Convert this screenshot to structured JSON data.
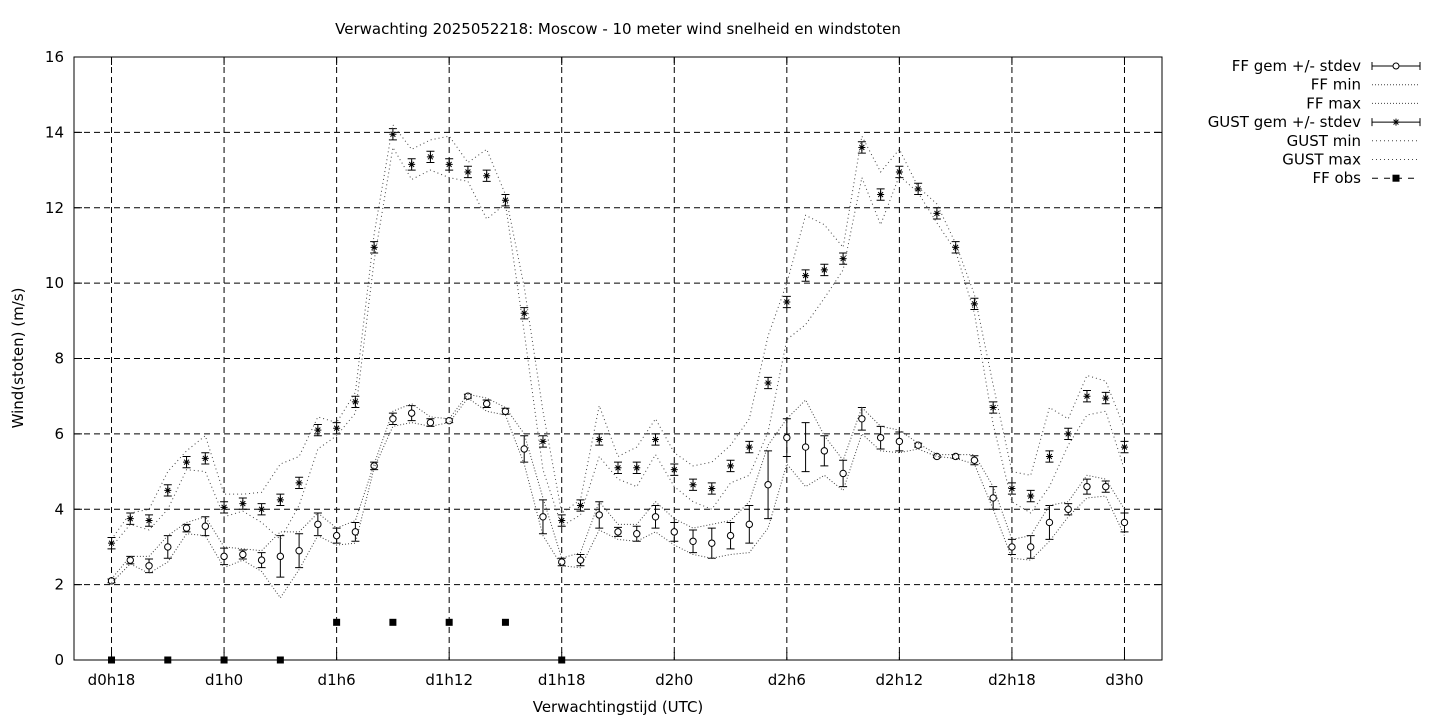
{
  "chart_data": {
    "type": "line",
    "title": "Verwachting 2025052218: Moscow - 10 meter wind snelheid en windstoten",
    "xlabel": "Verwachtingstijd (UTC)",
    "ylabel": "Wind(stoten) (m/s)",
    "x_unit": "hours since d0h18",
    "xlim": [
      -2,
      56
    ],
    "ylim": [
      0,
      16
    ],
    "yticks": [
      0,
      2,
      4,
      6,
      8,
      10,
      12,
      14,
      16
    ],
    "xticks": [
      {
        "x": 0,
        "label": "d0h18"
      },
      {
        "x": 6,
        "label": "d1h0"
      },
      {
        "x": 12,
        "label": "d1h6"
      },
      {
        "x": 18,
        "label": "d1h12"
      },
      {
        "x": 24,
        "label": "d1h18"
      },
      {
        "x": 30,
        "label": "d2h0"
      },
      {
        "x": 36,
        "label": "d2h6"
      },
      {
        "x": 42,
        "label": "d2h12"
      },
      {
        "x": 48,
        "label": "d2h18"
      },
      {
        "x": 54,
        "label": "d3h0"
      }
    ],
    "grid": true,
    "legend_position": "outside-right",
    "x": [
      0,
      1,
      2,
      3,
      4,
      5,
      6,
      7,
      8,
      9,
      10,
      11,
      12,
      13,
      14,
      15,
      16,
      17,
      18,
      19,
      20,
      21,
      22,
      23,
      24,
      25,
      26,
      27,
      28,
      29,
      30,
      31,
      32,
      33,
      34,
      35,
      36,
      37,
      38,
      39,
      40,
      41,
      42,
      43,
      44,
      45,
      46,
      47,
      48,
      49,
      50,
      51,
      52,
      53,
      54
    ],
    "series": [
      {
        "name": "FF gem +/- stdev",
        "style": "errorbars-circle",
        "values": [
          2.1,
          2.65,
          2.5,
          3.0,
          3.5,
          3.55,
          2.75,
          2.8,
          2.65,
          2.75,
          2.9,
          3.6,
          3.3,
          3.4,
          5.15,
          6.4,
          6.55,
          6.3,
          6.35,
          7.0,
          6.8,
          6.6,
          5.6,
          3.8,
          2.6,
          2.65,
          3.85,
          3.4,
          3.35,
          3.8,
          3.4,
          3.15,
          3.1,
          3.3,
          3.6,
          4.65,
          5.9,
          5.65,
          5.55,
          4.95,
          6.4,
          5.9,
          5.8,
          5.7,
          5.4,
          5.4,
          5.3,
          4.3,
          3.0,
          3.0,
          3.65,
          4.0,
          4.6,
          4.6,
          3.65
        ],
        "stdev": [
          0.05,
          0.1,
          0.18,
          0.3,
          0.1,
          0.25,
          0.22,
          0.12,
          0.2,
          0.55,
          0.45,
          0.3,
          0.2,
          0.25,
          0.1,
          0.15,
          0.2,
          0.1,
          0.05,
          0.05,
          0.1,
          0.08,
          0.35,
          0.45,
          0.1,
          0.15,
          0.35,
          0.12,
          0.2,
          0.3,
          0.25,
          0.3,
          0.4,
          0.35,
          0.5,
          0.9,
          0.5,
          0.65,
          0.4,
          0.35,
          0.3,
          0.3,
          0.25,
          0.05,
          0.03,
          0.05,
          0.12,
          0.3,
          0.2,
          0.3,
          0.45,
          0.15,
          0.2,
          0.15,
          0.25
        ]
      },
      {
        "name": "FF min",
        "style": "dotted",
        "values": [
          2.05,
          2.55,
          2.3,
          2.6,
          3.35,
          3.3,
          2.45,
          2.65,
          2.35,
          1.65,
          2.4,
          3.3,
          3.05,
          3.1,
          5.1,
          6.2,
          6.3,
          6.2,
          6.3,
          6.95,
          6.6,
          6.5,
          5.2,
          3.3,
          2.5,
          2.45,
          3.45,
          3.2,
          3.15,
          3.4,
          3.05,
          2.8,
          2.7,
          2.8,
          2.85,
          3.5,
          5.2,
          4.6,
          4.9,
          4.5,
          6.0,
          5.55,
          5.5,
          5.6,
          5.4,
          5.35,
          5.2,
          4.0,
          2.7,
          2.65,
          3.15,
          3.8,
          4.3,
          4.35,
          3.3
        ]
      },
      {
        "name": "FF max",
        "style": "dotted",
        "values": [
          2.15,
          2.75,
          2.75,
          3.3,
          3.65,
          3.8,
          3.0,
          2.95,
          2.9,
          3.4,
          3.4,
          3.9,
          3.5,
          3.7,
          5.2,
          6.6,
          6.8,
          6.45,
          6.4,
          7.05,
          6.95,
          6.7,
          6.0,
          4.3,
          2.7,
          2.85,
          4.2,
          3.6,
          3.6,
          4.2,
          3.75,
          3.5,
          3.6,
          3.7,
          4.2,
          5.7,
          6.4,
          6.9,
          5.95,
          5.3,
          6.7,
          6.2,
          6.1,
          5.75,
          5.45,
          5.45,
          5.45,
          4.6,
          3.2,
          3.3,
          4.1,
          4.2,
          4.9,
          4.8,
          4.0
        ]
      },
      {
        "name": "GUST gem +/- stdev",
        "style": "errorbars-star",
        "values": [
          3.1,
          3.75,
          3.7,
          4.5,
          5.25,
          5.35,
          4.05,
          4.15,
          4.0,
          4.25,
          4.7,
          6.1,
          6.15,
          6.85,
          10.95,
          13.95,
          13.15,
          13.35,
          13.15,
          12.95,
          12.85,
          12.2,
          9.2,
          5.8,
          3.7,
          4.1,
          5.85,
          5.1,
          5.1,
          5.85,
          5.05,
          4.65,
          4.55,
          5.15,
          5.65,
          7.35,
          9.5,
          10.2,
          10.35,
          10.65,
          13.6,
          12.35,
          12.95,
          12.5,
          11.85,
          10.95,
          9.45,
          6.7,
          4.55,
          4.35,
          5.4,
          6.0,
          7.0,
          6.95,
          5.65
        ]
      },
      {
        "name": "GUST min",
        "style": "dotted",
        "values": [
          3.0,
          3.6,
          3.45,
          4.0,
          5.05,
          5.0,
          3.8,
          3.95,
          3.65,
          3.2,
          4.1,
          5.6,
          5.95,
          6.55,
          10.6,
          13.6,
          12.75,
          13.0,
          12.8,
          12.7,
          11.7,
          12.1,
          8.7,
          5.05,
          3.55,
          3.85,
          5.4,
          4.8,
          4.6,
          5.45,
          4.6,
          4.2,
          4.0,
          4.7,
          4.9,
          6.05,
          8.5,
          8.9,
          9.6,
          10.35,
          12.8,
          11.55,
          12.85,
          12.4,
          11.6,
          10.85,
          9.2,
          6.25,
          4.2,
          3.9,
          4.6,
          5.7,
          6.5,
          6.6,
          5.05
        ]
      },
      {
        "name": "GUST max",
        "style": "dotted",
        "values": [
          3.2,
          3.9,
          4.0,
          5.0,
          5.55,
          5.95,
          4.4,
          4.4,
          4.45,
          5.2,
          5.4,
          6.45,
          6.3,
          7.1,
          11.3,
          14.2,
          13.55,
          13.8,
          13.9,
          13.2,
          13.55,
          12.35,
          9.9,
          6.6,
          3.9,
          4.25,
          6.75,
          5.4,
          5.65,
          6.4,
          5.5,
          5.15,
          5.25,
          5.7,
          6.4,
          8.6,
          10.0,
          11.8,
          11.55,
          10.95,
          13.9,
          12.95,
          13.55,
          12.55,
          12.1,
          11.05,
          9.7,
          7.3,
          5.0,
          4.9,
          6.7,
          6.4,
          7.55,
          7.4,
          6.15
        ]
      },
      {
        "name": "FF obs",
        "style": "points-square",
        "points": [
          [
            0,
            0
          ],
          [
            3,
            0
          ],
          [
            6,
            0
          ],
          [
            9,
            0
          ],
          [
            12,
            1
          ],
          [
            15,
            1
          ],
          [
            18,
            1
          ],
          [
            21,
            1
          ],
          [
            24,
            0
          ]
        ]
      }
    ]
  }
}
